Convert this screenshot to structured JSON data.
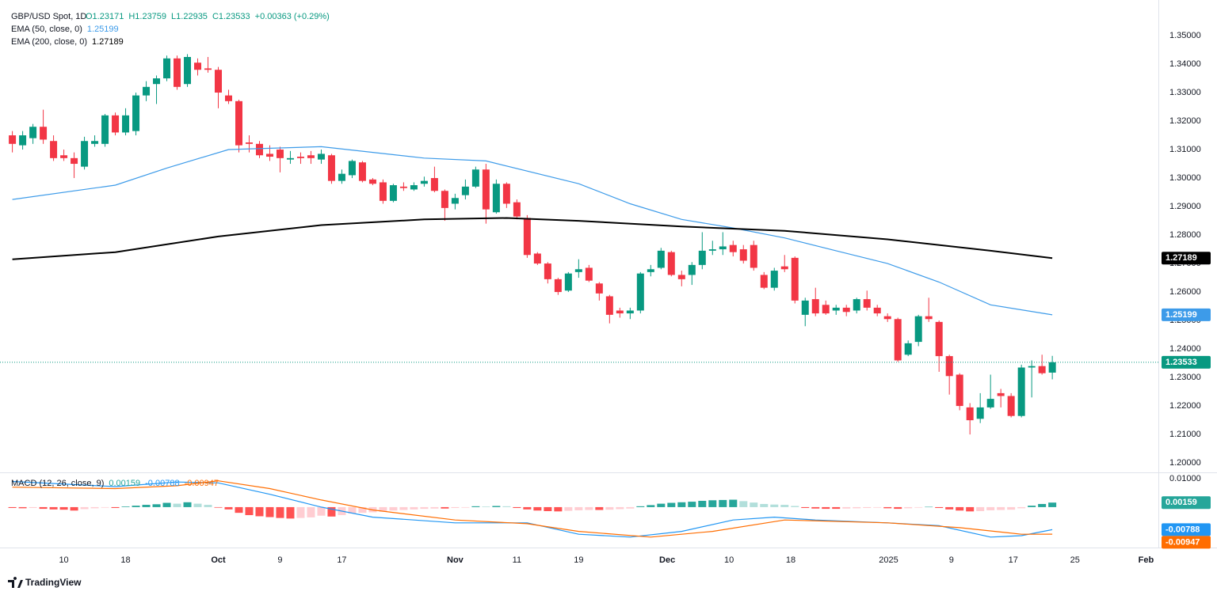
{
  "chart_data": [
    {
      "type": "candlestick",
      "title": "GBP/USD Spot, 1D",
      "ohlc_labels": [
        "O1.23171",
        "H1.23759",
        "L1.22935",
        "C1.23533",
        "+0.00363 (+0.29%)"
      ],
      "colors": {
        "up": "#089981",
        "down": "#f23645"
      },
      "last_label": "1.23533",
      "xlim": [
        -1.2,
        111.3
      ],
      "xticks": [
        {
          "value": 5,
          "label": "10"
        },
        {
          "value": 11,
          "label": "18"
        },
        {
          "value": 20,
          "label": "Oct"
        },
        {
          "value": 26,
          "label": "9"
        },
        {
          "value": 32,
          "label": "17"
        },
        {
          "value": 43,
          "label": "Nov"
        },
        {
          "value": 49,
          "label": "11"
        },
        {
          "value": 55,
          "label": "19"
        },
        {
          "value": 63.6,
          "label": "Dec"
        },
        {
          "value": 69.6,
          "label": "10"
        },
        {
          "value": 75.6,
          "label": "18"
        },
        {
          "value": 85.1,
          "label": "2025"
        },
        {
          "value": 91.2,
          "label": "9"
        },
        {
          "value": 97.2,
          "label": "17"
        },
        {
          "value": 103.2,
          "label": "25"
        },
        {
          "value": 110.1,
          "label": "Feb"
        }
      ],
      "ylim": [
        1.1967,
        1.3625
      ],
      "yticks": [
        {
          "value": 1.35,
          "label": "1.35000"
        },
        {
          "value": 1.34,
          "label": "1.34000"
        },
        {
          "value": 1.33,
          "label": "1.33000"
        },
        {
          "value": 1.32,
          "label": "1.32000"
        },
        {
          "value": 1.31,
          "label": "1.31000"
        },
        {
          "value": 1.3,
          "label": "1.30000"
        },
        {
          "value": 1.29,
          "label": "1.29000"
        },
        {
          "value": 1.28,
          "label": "1.28000"
        },
        {
          "value": 1.27,
          "label": "1.27000"
        },
        {
          "value": 1.26,
          "label": "1.26000"
        },
        {
          "value": 1.25,
          "label": "1.25000"
        },
        {
          "value": 1.24,
          "label": "1.24000"
        },
        {
          "value": 1.23,
          "label": "1.23000"
        },
        {
          "value": 1.22,
          "label": "1.22000"
        },
        {
          "value": 1.21,
          "label": "1.21000"
        },
        {
          "value": 1.2,
          "label": "1.20000"
        }
      ],
      "candles": [
        [
          1.315,
          1.3165,
          1.309,
          1.312
        ],
        [
          1.3115,
          1.3165,
          1.31,
          1.315
        ],
        [
          1.314,
          1.319,
          1.312,
          1.318
        ],
        [
          1.318,
          1.324,
          1.312,
          1.3135
        ],
        [
          1.313,
          1.315,
          1.306,
          1.307
        ],
        [
          1.308,
          1.31,
          1.306,
          1.307
        ],
        [
          1.307,
          1.309,
          1.3,
          1.305
        ],
        [
          1.304,
          1.3145,
          1.303,
          1.313
        ],
        [
          1.312,
          1.315,
          1.311,
          1.313
        ],
        [
          1.312,
          1.3225,
          1.311,
          1.322
        ],
        [
          1.322,
          1.323,
          1.315,
          1.316
        ],
        [
          1.316,
          1.3245,
          1.315,
          1.322
        ],
        [
          1.3165,
          1.33,
          1.315,
          1.329
        ],
        [
          1.329,
          1.334,
          1.327,
          1.332
        ],
        [
          1.333,
          1.336,
          1.326,
          1.335
        ],
        [
          1.335,
          1.343,
          1.334,
          1.342
        ],
        [
          1.342,
          1.343,
          1.331,
          1.332
        ],
        [
          1.333,
          1.3435,
          1.332,
          1.3425
        ],
        [
          1.3405,
          1.342,
          1.336,
          1.338
        ],
        [
          1.3385,
          1.3425,
          1.337,
          1.338
        ],
        [
          1.338,
          1.339,
          1.3245,
          1.33
        ],
        [
          1.329,
          1.331,
          1.326,
          1.327
        ],
        [
          1.327,
          1.3275,
          1.309,
          1.3115
        ],
        [
          1.3125,
          1.315,
          1.309,
          1.312
        ],
        [
          1.312,
          1.313,
          1.307,
          1.308
        ],
        [
          1.3085,
          1.3115,
          1.306,
          1.3075
        ],
        [
          1.31,
          1.311,
          1.302,
          1.307
        ],
        [
          1.3065,
          1.3095,
          1.305,
          1.307
        ],
        [
          1.3075,
          1.309,
          1.305,
          1.307
        ],
        [
          1.308,
          1.3095,
          1.305,
          1.307
        ],
        [
          1.3065,
          1.31,
          1.305,
          1.3085
        ],
        [
          1.308,
          1.3085,
          1.298,
          1.299
        ],
        [
          1.299,
          1.303,
          1.298,
          1.3015
        ],
        [
          1.301,
          1.3065,
          1.3,
          1.306
        ],
        [
          1.3055,
          1.306,
          1.2985,
          1.299
        ],
        [
          1.2995,
          1.3,
          1.2975,
          1.298
        ],
        [
          1.2985,
          1.2995,
          1.291,
          1.292
        ],
        [
          1.292,
          1.298,
          1.2915,
          1.2975
        ],
        [
          1.297,
          1.2985,
          1.2955,
          1.2965
        ],
        [
          1.296,
          1.2985,
          1.2955,
          1.2975
        ],
        [
          1.298,
          1.3005,
          1.297,
          1.299
        ],
        [
          1.3,
          1.304,
          1.295,
          1.2955
        ],
        [
          1.2955,
          1.296,
          1.285,
          1.2895
        ],
        [
          1.291,
          1.2945,
          1.289,
          1.293
        ],
        [
          1.294,
          1.2995,
          1.2925,
          1.297
        ],
        [
          1.297,
          1.304,
          1.2965,
          1.303
        ],
        [
          1.303,
          1.305,
          1.284,
          1.289
        ],
        [
          1.288,
          1.2995,
          1.2875,
          1.298
        ],
        [
          1.298,
          1.2985,
          1.2895,
          1.291
        ],
        [
          1.2915,
          1.2925,
          1.2855,
          1.2865
        ],
        [
          1.286,
          1.287,
          1.272,
          1.273
        ],
        [
          1.2735,
          1.274,
          1.2695,
          1.27
        ],
        [
          1.27,
          1.2705,
          1.263,
          1.2645
        ],
        [
          1.2645,
          1.265,
          1.259,
          1.26
        ],
        [
          1.2605,
          1.267,
          1.26,
          1.2665
        ],
        [
          1.267,
          1.2715,
          1.265,
          1.268
        ],
        [
          1.2685,
          1.2695,
          1.2635,
          1.264
        ],
        [
          1.263,
          1.2635,
          1.257,
          1.2595
        ],
        [
          1.2585,
          1.259,
          1.249,
          1.252
        ],
        [
          1.2535,
          1.2545,
          1.251,
          1.2525
        ],
        [
          1.2525,
          1.2545,
          1.2505,
          1.2535
        ],
        [
          1.2535,
          1.267,
          1.2525,
          1.2665
        ],
        [
          1.267,
          1.2695,
          1.2655,
          1.268
        ],
        [
          1.2685,
          1.2755,
          1.268,
          1.2745
        ],
        [
          1.274,
          1.2745,
          1.2655,
          1.266
        ],
        [
          1.266,
          1.2675,
          1.262,
          1.2645
        ],
        [
          1.266,
          1.2705,
          1.2625,
          1.2695
        ],
        [
          1.2695,
          1.281,
          1.268,
          1.2745
        ],
        [
          1.2745,
          1.278,
          1.273,
          1.275
        ],
        [
          1.275,
          1.281,
          1.273,
          1.276
        ],
        [
          1.2765,
          1.278,
          1.2725,
          1.274
        ],
        [
          1.275,
          1.2765,
          1.27,
          1.271
        ],
        [
          1.2765,
          1.278,
          1.2675,
          1.2685
        ],
        [
          1.266,
          1.267,
          1.261,
          1.2615
        ],
        [
          1.2615,
          1.2685,
          1.2605,
          1.2675
        ],
        [
          1.269,
          1.273,
          1.267,
          1.268
        ],
        [
          1.272,
          1.2725,
          1.256,
          1.257
        ],
        [
          1.252,
          1.258,
          1.248,
          1.257
        ],
        [
          1.2575,
          1.2615,
          1.2515,
          1.2525
        ],
        [
          1.2555,
          1.257,
          1.252,
          1.2525
        ],
        [
          1.2535,
          1.2555,
          1.252,
          1.2545
        ],
        [
          1.2545,
          1.2555,
          1.2515,
          1.253
        ],
        [
          1.2535,
          1.258,
          1.2525,
          1.2575
        ],
        [
          1.2575,
          1.2605,
          1.2535,
          1.2545
        ],
        [
          1.2545,
          1.2555,
          1.2515,
          1.2525
        ],
        [
          1.2515,
          1.2525,
          1.2495,
          1.2505
        ],
        [
          1.2505,
          1.251,
          1.2355,
          1.236
        ],
        [
          1.238,
          1.243,
          1.2375,
          1.242
        ],
        [
          1.2425,
          1.252,
          1.241,
          1.2515
        ],
        [
          1.2515,
          1.258,
          1.2495,
          1.2505
        ],
        [
          1.2495,
          1.25,
          1.232,
          1.2375
        ],
        [
          1.2375,
          1.238,
          1.224,
          1.2305
        ],
        [
          1.231,
          1.2315,
          1.2185,
          1.22
        ],
        [
          1.2195,
          1.221,
          1.21,
          1.215
        ],
        [
          1.2155,
          1.2245,
          1.214,
          1.2195
        ],
        [
          1.2195,
          1.231,
          1.219,
          1.2225
        ],
        [
          1.2245,
          1.226,
          1.2195,
          1.2235
        ],
        [
          1.2235,
          1.2245,
          1.216,
          1.2165
        ],
        [
          1.2165,
          1.2345,
          1.216,
          1.2335
        ],
        [
          1.2335,
          1.236,
          1.223,
          1.234
        ],
        [
          1.234,
          1.238,
          1.231,
          1.2315
        ],
        [
          1.23171,
          1.23759,
          1.22935,
          1.23533
        ]
      ],
      "series": [
        {
          "name": "EMA (50, close, 0)",
          "value_label": "1.25199",
          "color": "#3d9be9",
          "x": [
            0,
            10,
            15,
            21,
            30,
            40,
            46,
            55,
            60,
            65,
            70,
            75,
            80,
            85,
            90,
            95,
            101
          ],
          "values": [
            1.2925,
            1.2975,
            1.3035,
            1.31,
            1.311,
            1.307,
            1.306,
            1.298,
            1.291,
            1.2855,
            1.2825,
            1.279,
            1.2745,
            1.27,
            1.2635,
            1.2555,
            1.25199
          ]
        },
        {
          "name": "EMA (200, close, 0)",
          "value_label": "1.27189",
          "color": "#000000",
          "x": [
            0,
            10,
            20,
            30,
            40,
            48,
            55,
            65,
            75,
            85,
            95,
            101
          ],
          "values": [
            1.2715,
            1.274,
            1.2795,
            1.2835,
            1.2855,
            1.286,
            1.285,
            1.283,
            1.2815,
            1.2785,
            1.2745,
            1.27189
          ]
        }
      ]
    },
    {
      "type": "macd",
      "title": "MACD (12, 26, close, 9)",
      "ylim": [
        -0.0136,
        0.0119
      ],
      "yticks": [
        {
          "value": 0.01,
          "label": "0.01000"
        }
      ],
      "histogram": {
        "value_label": "0.00159",
        "colors": [
          "#26a69a",
          "#b2dfdb",
          "#ffcdd2",
          "#ff5252"
        ],
        "values": [
          -0.0003,
          -0.0004,
          -0.0003,
          -0.0006,
          -0.0008,
          -0.0009,
          -0.0012,
          -0.0007,
          -0.0004,
          -0.0002,
          -0.0003,
          0.0002,
          0.0005,
          0.0008,
          0.001,
          0.0015,
          0.0012,
          0.0017,
          0.0012,
          0.0008,
          -0.0002,
          -0.0008,
          -0.002,
          -0.0028,
          -0.0032,
          -0.0035,
          -0.0038,
          -0.004,
          -0.0038,
          -0.0036,
          -0.003,
          -0.0033,
          -0.0028,
          -0.0022,
          -0.002,
          -0.0018,
          -0.0016,
          -0.0012,
          -0.001,
          -0.0008,
          -0.0006,
          -0.0005,
          -0.0005,
          -0.0003,
          -0.0002,
          0.0003,
          0.0002,
          0.0004,
          0.0003,
          -0.0003,
          -0.0008,
          -0.0012,
          -0.0014,
          -0.0015,
          -0.0013,
          -0.0011,
          -0.001,
          -0.001,
          -0.0009,
          -0.0007,
          -0.0005,
          0.0003,
          0.0007,
          0.0012,
          0.0015,
          0.0017,
          0.0019,
          0.0022,
          0.0024,
          0.0025,
          0.0026,
          0.0021,
          0.0016,
          0.0011,
          0.0009,
          0.0008,
          0.0004,
          -0.0003,
          -0.0005,
          -0.0006,
          -0.0006,
          -0.0005,
          -0.0004,
          -0.0003,
          -0.0002,
          -0.0004,
          -0.0006,
          -0.0004,
          -0.0002,
          0.0001,
          -0.0003,
          -0.0008,
          -0.0012,
          -0.0015,
          -0.0014,
          -0.0011,
          -0.001,
          -0.0009,
          -0.0004,
          0.0005,
          0.0011,
          0.00159
        ]
      },
      "series": [
        {
          "name": "MACD",
          "value_label": "-0.00788",
          "color": "#2196f3",
          "x": [
            0,
            10,
            16,
            20,
            25,
            30,
            35,
            43,
            50,
            55,
            60,
            65,
            70,
            74,
            78,
            85,
            90,
            95,
            98,
            101
          ],
          "values": [
            0.009,
            0.0072,
            0.0088,
            0.0085,
            0.0045,
            0.0,
            -0.0035,
            -0.0055,
            -0.0055,
            -0.0095,
            -0.0105,
            -0.0085,
            -0.0045,
            -0.0035,
            -0.0045,
            -0.0055,
            -0.0065,
            -0.0105,
            -0.01,
            -0.00788
          ]
        },
        {
          "name": "Signal",
          "value_label": "-0.00947",
          "color": "#ff6d00",
          "x": [
            0,
            10,
            16,
            20,
            25,
            30,
            35,
            43,
            50,
            55,
            62,
            68,
            75,
            85,
            92,
            98,
            101
          ],
          "values": [
            0.007,
            0.0065,
            0.0075,
            0.0092,
            0.0065,
            0.0025,
            -0.001,
            -0.0045,
            -0.0058,
            -0.0085,
            -0.0105,
            -0.0085,
            -0.0045,
            -0.0055,
            -0.0072,
            -0.0095,
            -0.00947
          ]
        }
      ]
    }
  ],
  "footer": "TradingView"
}
